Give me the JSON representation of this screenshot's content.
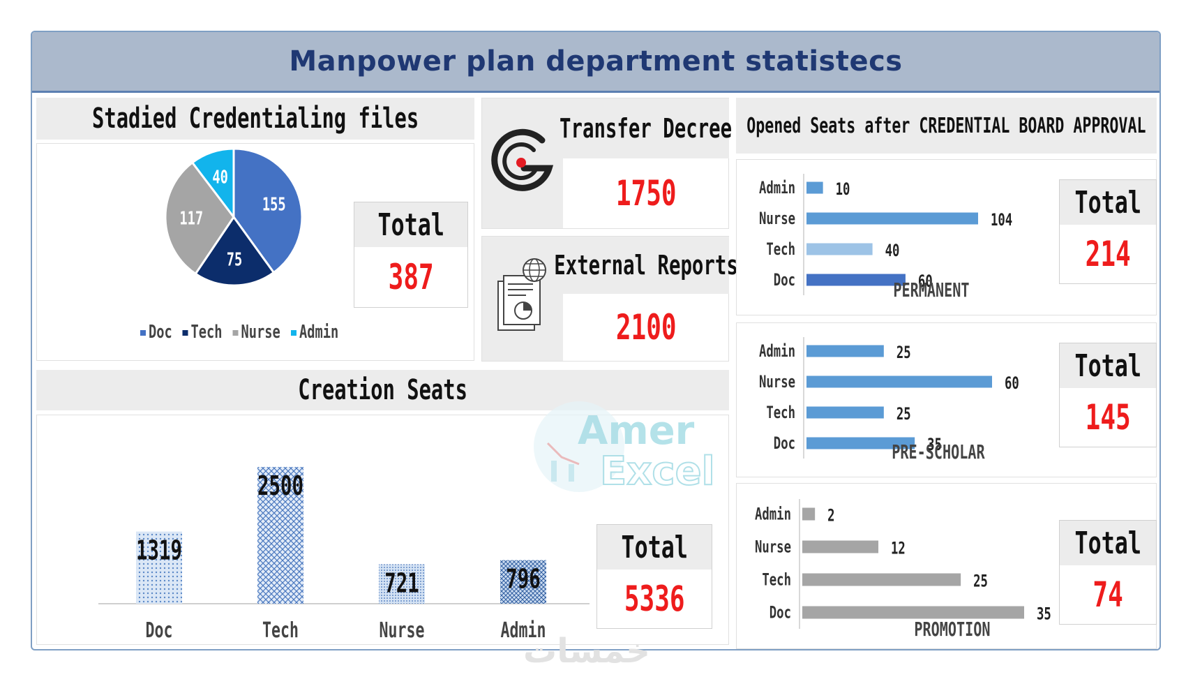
{
  "header": {
    "title": "Manpower plan department statistecs"
  },
  "credentialing": {
    "title": "Stadied Credentialing files",
    "total_label": "Total",
    "total_value": "387",
    "chart_data": {
      "type": "pie",
      "title": "Stadied Credentialing files",
      "categories": [
        "Doc",
        "Tech",
        "Nurse",
        "Admin"
      ],
      "values": [
        155,
        75,
        117,
        40
      ],
      "colors": [
        "#4472c4",
        "#0c2d6b",
        "#a5a5a5",
        "#12b4ec"
      ],
      "legend_position": "bottom"
    }
  },
  "transfer": {
    "title": "Transfer Decree",
    "value": "1750",
    "icon": "g-logo-icon"
  },
  "external": {
    "title": "External Reports",
    "value": "2100",
    "icon": "report-document-icon"
  },
  "creation": {
    "title": "Creation Seats",
    "total_label": "Total",
    "total_value": "5336",
    "chart_data": {
      "type": "bar",
      "title": "Creation Seats",
      "categories": [
        "Doc",
        "Tech",
        "Nurse",
        "Admin"
      ],
      "values": [
        1319,
        2500,
        721,
        796
      ],
      "ylim": [
        0,
        2500
      ]
    }
  },
  "opened": {
    "title": "Opened Seats after CREDENTIAL BOARD APPROVAL",
    "charts": [
      {
        "key": "permanent",
        "total_label": "Total",
        "total_value": "214",
        "chart_data": {
          "type": "bar",
          "orientation": "horizontal",
          "xlabel": "PERMANENT",
          "categories": [
            "Admin",
            "Nurse",
            "Tech",
            "Doc"
          ],
          "values": [
            10,
            104,
            40,
            60
          ],
          "colors": [
            "#5b9bd5",
            "#5b9bd5",
            "#9dc3e6",
            "#4472c4"
          ],
          "xlim": [
            0,
            104
          ]
        }
      },
      {
        "key": "prescholar",
        "total_label": "Total",
        "total_value": "145",
        "chart_data": {
          "type": "bar",
          "orientation": "horizontal",
          "xlabel": "PRE-SCHOLAR",
          "categories": [
            "Admin",
            "Nurse",
            "Tech",
            "Doc"
          ],
          "values": [
            25,
            60,
            25,
            35
          ],
          "colors": [
            "#5b9bd5",
            "#5b9bd5",
            "#5b9bd5",
            "#5b9bd5"
          ],
          "xlim": [
            0,
            60
          ]
        }
      },
      {
        "key": "promotion",
        "total_label": "Total",
        "total_value": "74",
        "chart_data": {
          "type": "bar",
          "orientation": "horizontal",
          "xlabel": "PROMOTION",
          "categories": [
            "Admin",
            "Nurse",
            "Tech",
            "Doc"
          ],
          "values": [
            2,
            12,
            25,
            35
          ],
          "colors": [
            "#a5a5a5",
            "#a5a5a5",
            "#a5a5a5",
            "#a5a5a5"
          ],
          "xlim": [
            0,
            35
          ]
        }
      }
    ]
  },
  "watermark": {
    "line1": "Amer",
    "line2": "Excel",
    "footer": "خمسات"
  }
}
